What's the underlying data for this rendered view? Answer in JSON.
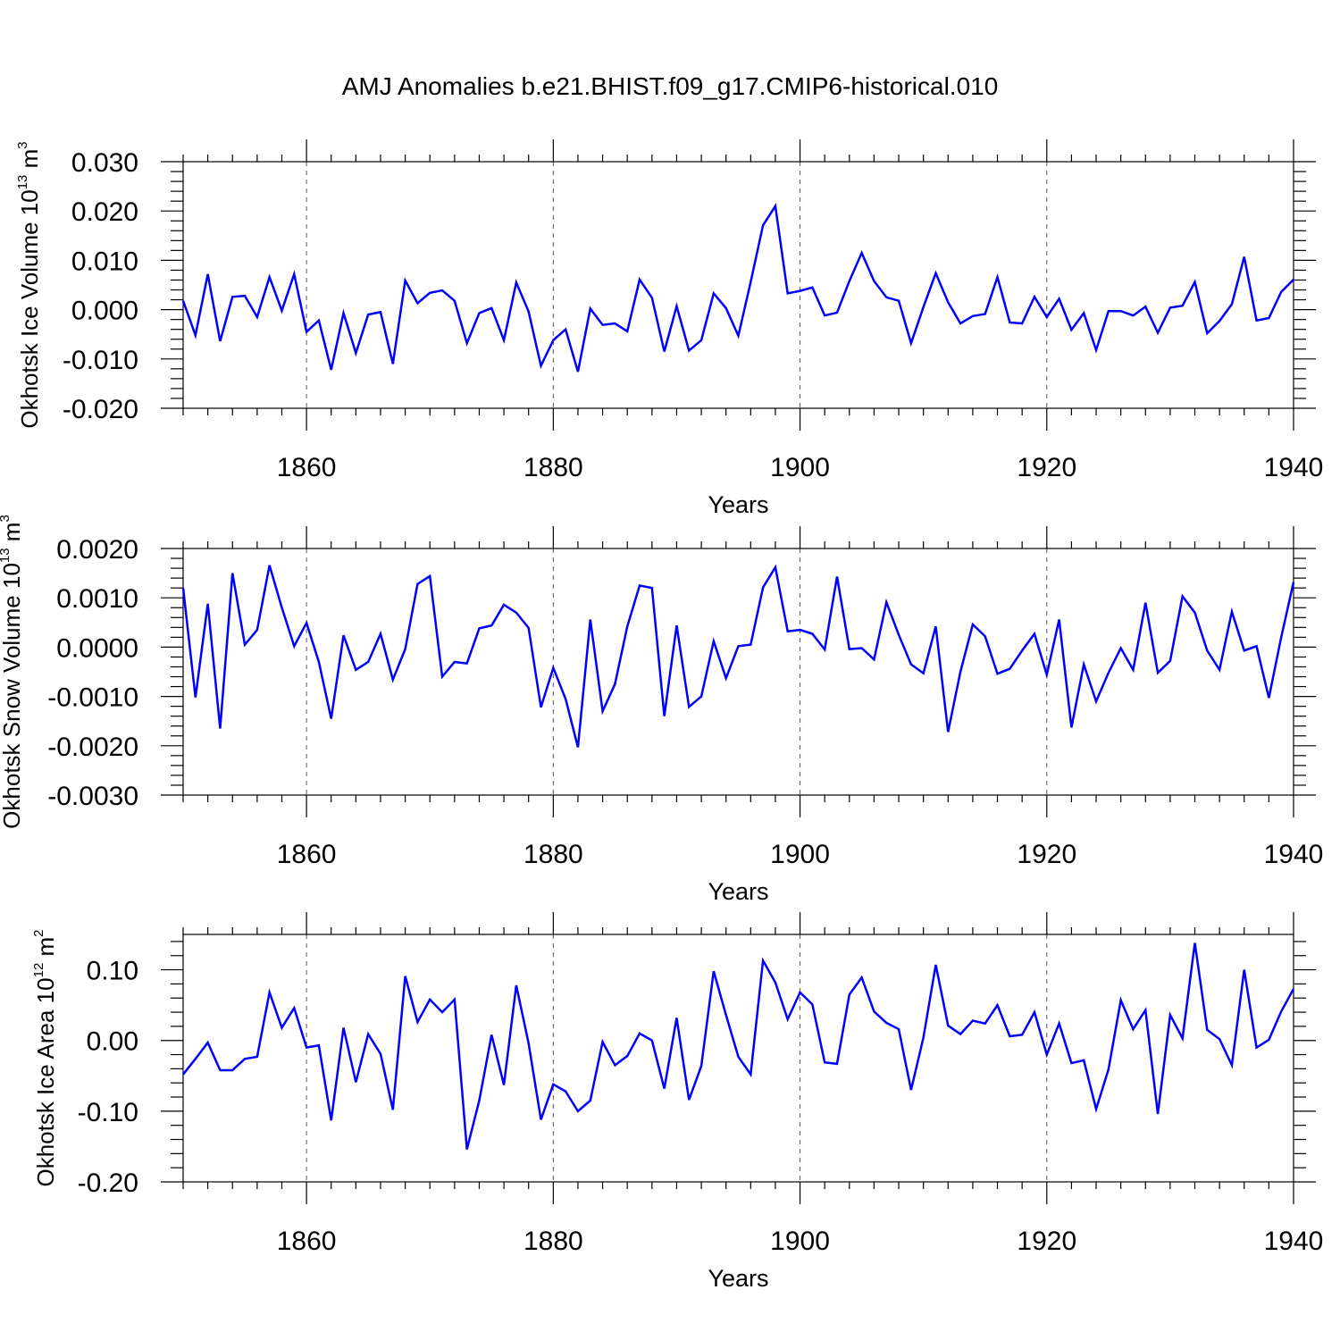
{
  "figure_title": "AMJ Anomalies b.e21.BHIST.f09_g17.CMIP6-historical.010",
  "colors": {
    "line": "#0000ff",
    "axis": "#000000",
    "grid": "#555555"
  },
  "chart_data": [
    {
      "type": "line",
      "title": "",
      "xlabel": "Years",
      "ylabel_main": "Okhotsk Ice Volume 10",
      "ylabel_exp": "13",
      "ylabel_unit": " m",
      "ylabel_unit_exp": "3",
      "xlim": [
        1850,
        1940
      ],
      "ylim": [
        -0.02,
        0.03
      ],
      "xticks": [
        1860,
        1880,
        1900,
        1920,
        1940
      ],
      "xtick_labels": [
        "1860",
        "1880",
        "1900",
        "1920",
        "1940"
      ],
      "yticks": [
        -0.02,
        -0.01,
        0.0,
        0.01,
        0.02,
        0.03
      ],
      "ytick_labels": [
        "-0.020",
        "-0.010",
        "0.000",
        "0.010",
        "0.020",
        "0.030"
      ],
      "x_start": 1850,
      "values": [
        0.0018,
        -0.0052,
        0.0072,
        -0.0064,
        0.0026,
        0.0028,
        -0.0015,
        0.0066,
        -0.0002,
        0.0072,
        -0.0045,
        -0.0022,
        -0.0122,
        -0.0007,
        -0.0088,
        -0.001,
        -0.0005,
        -0.011,
        0.0059,
        0.0013,
        0.0034,
        0.0039,
        0.0018,
        -0.0068,
        -0.0007,
        0.0003,
        -0.0062,
        0.0055,
        -0.0004,
        -0.0114,
        -0.0062,
        -0.004,
        -0.0126,
        0.0002,
        -0.0031,
        -0.0028,
        -0.0044,
        0.0061,
        0.0024,
        -0.0085,
        0.0007,
        -0.0083,
        -0.0062,
        0.0033,
        0.0003,
        -0.0053,
        0.0056,
        0.0171,
        0.021,
        0.0033,
        0.0038,
        0.0045,
        -0.0012,
        -0.0006,
        0.0058,
        0.0115,
        0.0058,
        0.0025,
        0.0018,
        -0.0068,
        0.0005,
        0.0074,
        0.0015,
        -0.0028,
        -0.0013,
        -0.0009,
        0.0066,
        -0.0026,
        -0.0028,
        0.0026,
        -0.0015,
        0.0022,
        -0.0041,
        -0.0007,
        -0.0082,
        -0.0003,
        -0.0003,
        -0.0012,
        0.0006,
        -0.0047,
        0.0004,
        0.0008,
        0.0056,
        -0.0048,
        -0.0023,
        0.0011,
        0.0107,
        -0.0022,
        -0.0017,
        0.0036,
        0.0061
      ]
    },
    {
      "type": "line",
      "title": "",
      "xlabel": "Years",
      "ylabel_main": "Okhotsk Snow Volume 10",
      "ylabel_exp": "13",
      "ylabel_unit": " m",
      "ylabel_unit_exp": "3",
      "xlim": [
        1850,
        1940
      ],
      "ylim": [
        -0.003,
        0.002
      ],
      "xticks": [
        1860,
        1880,
        1900,
        1920,
        1940
      ],
      "xtick_labels": [
        "1860",
        "1880",
        "1900",
        "1920",
        "1940"
      ],
      "yticks": [
        -0.003,
        -0.002,
        -0.001,
        0.0,
        0.001,
        0.002
      ],
      "ytick_labels": [
        "-0.0030",
        "-0.0020",
        "-0.0010",
        "0.0000",
        "0.0010",
        "0.0020"
      ],
      "x_start": 1850,
      "values": [
        0.0012,
        -0.00102,
        0.00088,
        -0.00165,
        0.0015,
        5e-05,
        0.00035,
        0.00166,
        0.0008,
        2e-05,
        0.00049,
        -0.0003,
        -0.00145,
        0.00024,
        -0.00046,
        -0.0003,
        0.00027,
        -0.00066,
        -4e-05,
        0.00128,
        0.00144,
        -0.0006,
        -0.0003,
        -0.00033,
        0.00038,
        0.00044,
        0.00086,
        0.0007,
        0.00039,
        -0.00122,
        -0.00042,
        -0.00105,
        -0.00203,
        0.00056,
        -0.0013,
        -0.00075,
        0.00042,
        0.00125,
        0.0012,
        -0.0014,
        0.00044,
        -0.00121,
        -0.001,
        0.00012,
        -0.00063,
        2e-05,
        5e-05,
        0.00121,
        0.00162,
        0.00032,
        0.00035,
        0.00027,
        -5e-05,
        0.00143,
        -4e-05,
        -2e-05,
        -0.00025,
        0.00091,
        0.00025,
        -0.00035,
        -0.00053,
        0.00042,
        -0.00172,
        -0.0005,
        0.00046,
        0.00022,
        -0.00054,
        -0.00044,
        -7e-05,
        0.00027,
        -0.00056,
        0.00056,
        -0.00163,
        -0.00035,
        -0.0011,
        -0.00052,
        -2e-05,
        -0.00046,
        0.0009,
        -0.00052,
        -0.00028,
        0.00103,
        0.0007,
        -7e-05,
        -0.00046,
        0.00072,
        -7e-05,
        2e-05,
        -0.00103,
        0.0002,
        0.00132
      ]
    },
    {
      "type": "line",
      "title": "",
      "xlabel": "Years",
      "ylabel_main": "Okhotsk Ice Area 10",
      "ylabel_exp": "12",
      "ylabel_unit": " m",
      "ylabel_unit_exp": "2",
      "xlim": [
        1850,
        1940
      ],
      "ylim": [
        -0.2,
        0.15
      ],
      "xticks": [
        1860,
        1880,
        1900,
        1920,
        1940
      ],
      "xtick_labels": [
        "1860",
        "1880",
        "1900",
        "1920",
        "1940"
      ],
      "yticks": [
        -0.2,
        -0.1,
        0.0,
        0.1
      ],
      "ytick_labels": [
        "-0.20",
        "-0.10",
        "0.00",
        "0.10"
      ],
      "x_start": 1850,
      "values": [
        -0.048,
        -0.026,
        -0.003,
        -0.042,
        -0.042,
        -0.026,
        -0.023,
        0.068,
        0.018,
        0.046,
        -0.01,
        -0.007,
        -0.113,
        0.018,
        -0.059,
        0.009,
        -0.019,
        -0.098,
        0.091,
        0.026,
        0.058,
        0.04,
        0.058,
        -0.154,
        -0.085,
        0.008,
        -0.063,
        0.078,
        -0.004,
        -0.112,
        -0.062,
        -0.072,
        -0.1,
        -0.085,
        -0.002,
        -0.035,
        -0.022,
        0.01,
        0.0,
        -0.068,
        0.032,
        -0.084,
        -0.036,
        0.098,
        0.036,
        -0.023,
        -0.048,
        0.113,
        0.082,
        0.03,
        0.068,
        0.051,
        -0.031,
        -0.033,
        0.065,
        0.089,
        0.041,
        0.025,
        0.016,
        -0.07,
        0.004,
        0.107,
        0.021,
        0.009,
        0.028,
        0.024,
        0.05,
        0.006,
        0.008,
        0.04,
        -0.02,
        0.024,
        -0.032,
        -0.028,
        -0.097,
        -0.041,
        0.057,
        0.016,
        0.043,
        -0.104,
        0.036,
        0.003,
        0.138,
        0.015,
        0.002,
        -0.035,
        0.1,
        -0.01,
        0.001,
        0.041,
        0.073
      ]
    }
  ]
}
